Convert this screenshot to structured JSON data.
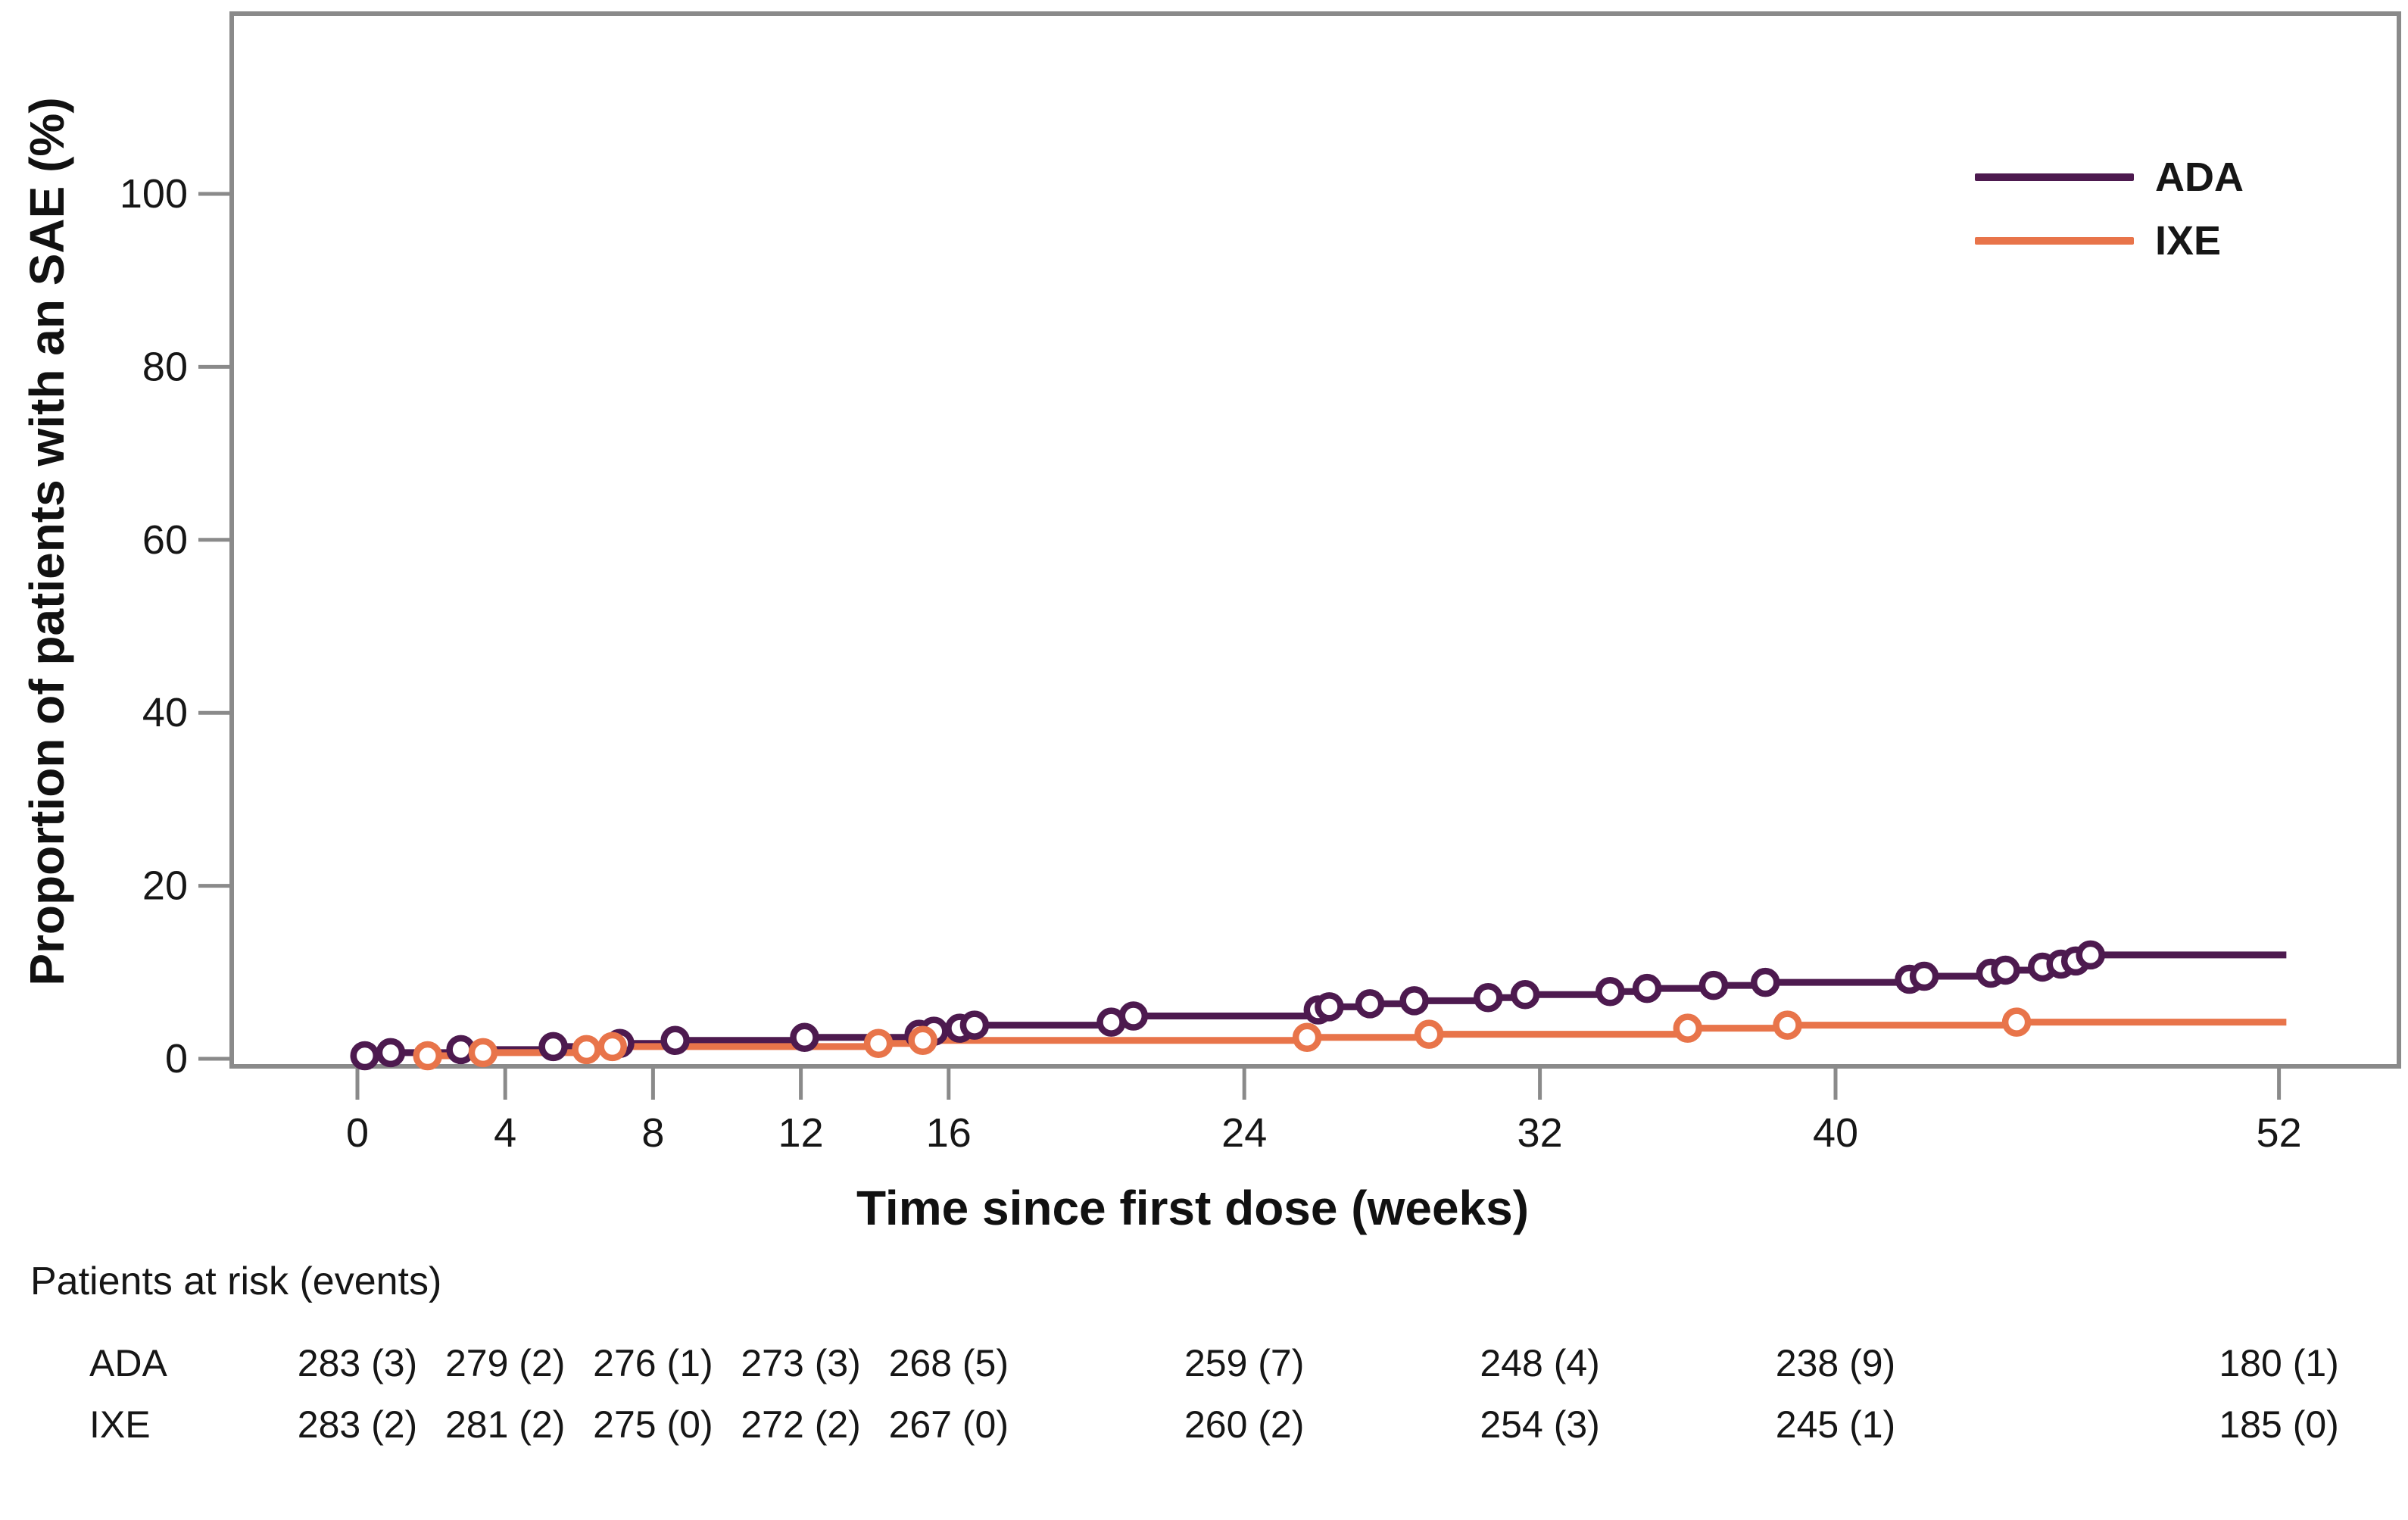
{
  "figure_title": "",
  "chart_data": {
    "type": "line",
    "subtype": "cumulative-incidence-step",
    "title": "",
    "xlabel": "Time since first dose (weeks)",
    "ylabel": "Proportion of patients with an SAE (%)",
    "xticks": [
      0,
      4,
      8,
      12,
      16,
      24,
      32,
      40,
      52
    ],
    "yticks": [
      0,
      20,
      40,
      60,
      80,
      100
    ],
    "xlim": [
      -3.4,
      55.3
    ],
    "ylim": [
      -0.9,
      120.9
    ],
    "grid": false,
    "legend_position": "inside-top-right",
    "curve_end_week": 52.2,
    "marker_style": "open-circle",
    "series": [
      {
        "name": "ADA",
        "color": "#4d1a4f",
        "points": [
          [
            0.2,
            0.35
          ],
          [
            0.9,
            0.71
          ],
          [
            2.8,
            1.06
          ],
          [
            5.3,
            1.41
          ],
          [
            7.1,
            1.77
          ],
          [
            8.6,
            2.12
          ],
          [
            12.1,
            2.47
          ],
          [
            15.2,
            2.83
          ],
          [
            15.6,
            3.18
          ],
          [
            16.3,
            3.53
          ],
          [
            16.7,
            3.89
          ],
          [
            20.4,
            4.24
          ],
          [
            21.0,
            4.95
          ],
          [
            26.0,
            5.65
          ],
          [
            26.3,
            6.01
          ],
          [
            27.4,
            6.36
          ],
          [
            28.6,
            6.71
          ],
          [
            30.6,
            7.07
          ],
          [
            31.6,
            7.42
          ],
          [
            33.9,
            7.77
          ],
          [
            34.9,
            8.13
          ],
          [
            36.7,
            8.48
          ],
          [
            38.1,
            8.83
          ],
          [
            42.0,
            9.19
          ],
          [
            42.4,
            9.54
          ],
          [
            44.2,
            9.89
          ],
          [
            44.6,
            10.25
          ],
          [
            45.6,
            10.6
          ],
          [
            46.1,
            10.95
          ],
          [
            46.5,
            11.31
          ],
          [
            46.9,
            12.01
          ]
        ]
      },
      {
        "name": "IXE",
        "color": "#e8744a",
        "points": [
          [
            1.9,
            0.35
          ],
          [
            3.4,
            0.71
          ],
          [
            6.2,
            1.06
          ],
          [
            6.9,
            1.41
          ],
          [
            14.1,
            1.77
          ],
          [
            15.3,
            2.12
          ],
          [
            25.7,
            2.47
          ],
          [
            29.0,
            2.83
          ],
          [
            36.0,
            3.53
          ],
          [
            38.7,
            3.89
          ],
          [
            44.9,
            4.24
          ]
        ]
      }
    ]
  },
  "legend": {
    "items": [
      {
        "label": "ADA",
        "color": "#4d1a4f"
      },
      {
        "label": "IXE",
        "color": "#e8744a"
      }
    ]
  },
  "risk_table": {
    "header": "Patients at risk (events)",
    "columns_weeks": [
      0,
      4,
      8,
      12,
      16,
      24,
      32,
      40,
      52
    ],
    "rows": [
      {
        "label": "ADA",
        "values": [
          "283 (3)",
          "279 (2)",
          "276 (1)",
          "273 (3)",
          "268 (5)",
          "259 (7)",
          "248 (4)",
          "238 (9)",
          "180 (1)"
        ]
      },
      {
        "label": "IXE",
        "values": [
          "283 (2)",
          "281 (2)",
          "275 (0)",
          "272 (2)",
          "267 (0)",
          "260 (2)",
          "254 (3)",
          "245 (1)",
          "185 (0)"
        ]
      }
    ]
  },
  "colors": {
    "frame": "#8a8a8a",
    "text": "#161616",
    "background": "#ffffff"
  }
}
